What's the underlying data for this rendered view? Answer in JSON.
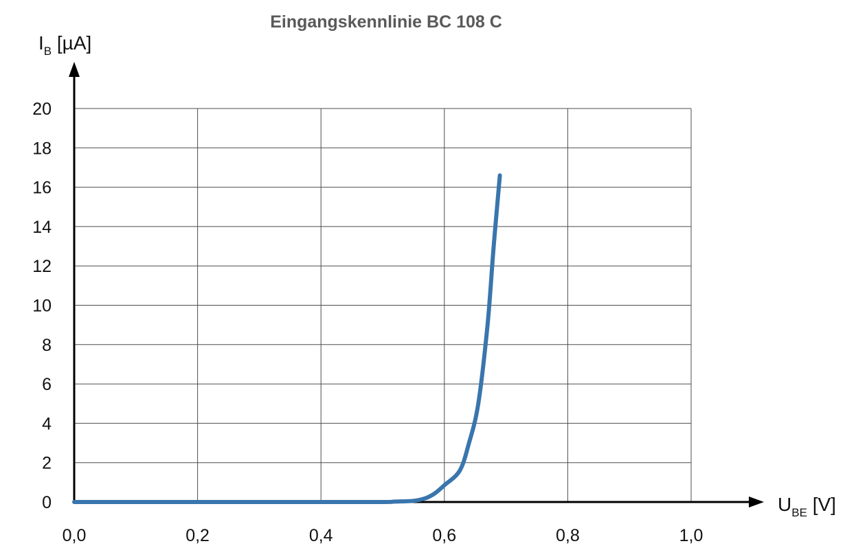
{
  "chart_data": {
    "type": "line",
    "title": "Eingangskennlinie  BC 108 C",
    "ylabel": {
      "main": "I",
      "sub": "B",
      "unit": " [µA]"
    },
    "xlabel": {
      "main": "U",
      "sub": "BE",
      "unit": " [V]"
    },
    "xlim": [
      0,
      1.0
    ],
    "ylim": [
      0,
      20
    ],
    "x_ticks": [
      "0,0",
      "0,2",
      "0,4",
      "0,6",
      "0,8",
      "1,0"
    ],
    "y_ticks": [
      "0",
      "2",
      "4",
      "6",
      "8",
      "10",
      "12",
      "14",
      "16",
      "18",
      "20"
    ],
    "grid": true,
    "series": [
      {
        "color": "#3a75ad",
        "x": [
          0.0,
          0.1,
          0.2,
          0.3,
          0.4,
          0.5,
          0.52,
          0.55,
          0.57,
          0.585,
          0.6,
          0.625,
          0.64,
          0.655,
          0.67,
          0.68,
          0.69
        ],
        "y": [
          0.0,
          0.0,
          0.0,
          0.0,
          0.0,
          0.0,
          0.02,
          0.06,
          0.2,
          0.45,
          0.85,
          1.6,
          3.0,
          5.0,
          9.0,
          13.0,
          16.6
        ]
      }
    ]
  }
}
